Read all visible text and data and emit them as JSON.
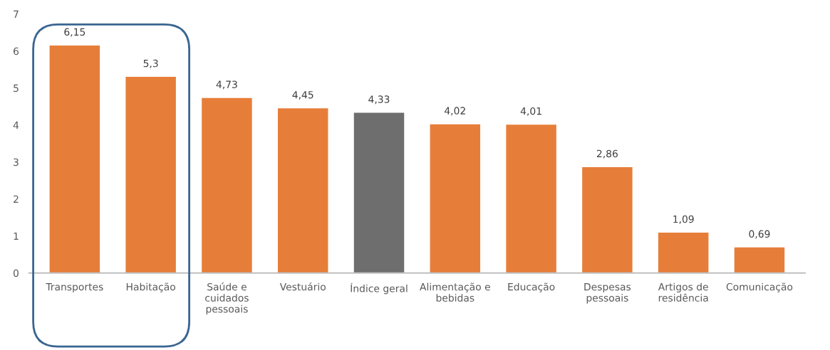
{
  "chart_data": {
    "type": "bar",
    "categories": [
      "Transportes",
      "Habitação",
      "Saúde e\ncuidados\npessoais",
      "Vestuário",
      "Índice geral",
      "Alimentação e\nbebidas",
      "Educação",
      "Despesas\npessoais",
      "Artigos de\nresidência",
      "Comunicação"
    ],
    "values": [
      6.15,
      5.3,
      4.73,
      4.45,
      4.33,
      4.02,
      4.01,
      2.86,
      1.09,
      0.69
    ],
    "colors": [
      "#e67e3a",
      "#e67e3a",
      "#e67e3a",
      "#e67e3a",
      "#6e6e6e",
      "#e67e3a",
      "#e67e3a",
      "#e67e3a",
      "#e67e3a",
      "#e67e3a"
    ],
    "value_labels": [
      "6,15",
      "5,3",
      "4,73",
      "4,45",
      "4,33",
      "4,02",
      "4,01",
      "2,86",
      "1,09",
      "0,69"
    ],
    "ylim": [
      0,
      7
    ],
    "yticks": [
      0,
      1,
      2,
      3,
      4,
      5,
      6,
      7
    ],
    "grid": false,
    "legend": false
  }
}
